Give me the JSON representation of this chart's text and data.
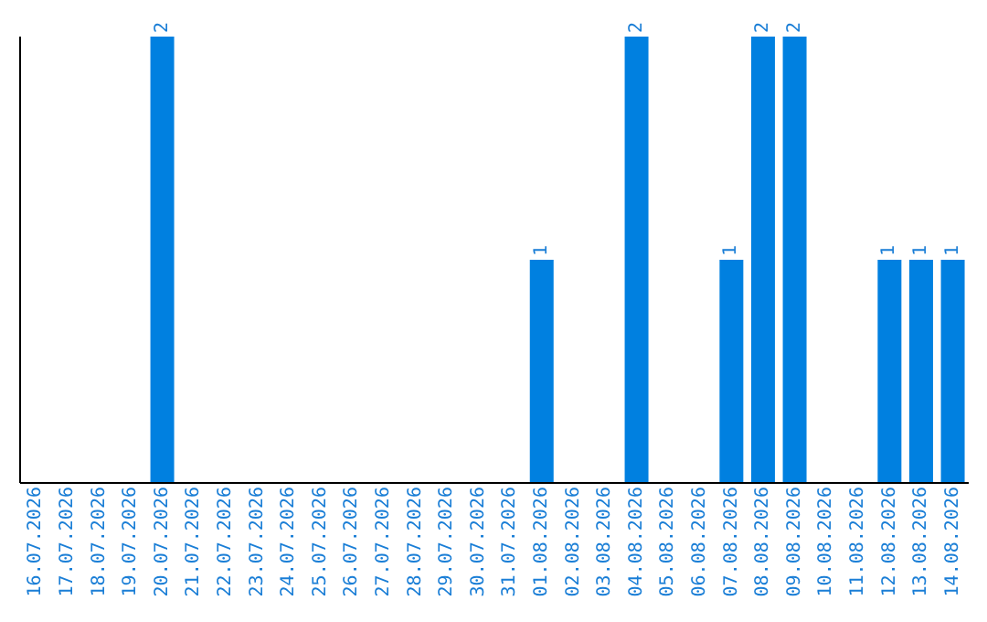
{
  "chart_data": {
    "type": "bar",
    "categories": [
      "16.07.2026",
      "17.07.2026",
      "18.07.2026",
      "19.07.2026",
      "20.07.2026",
      "21.07.2026",
      "22.07.2026",
      "23.07.2026",
      "24.07.2026",
      "25.07.2026",
      "26.07.2026",
      "27.07.2026",
      "28.07.2026",
      "29.07.2026",
      "30.07.2026",
      "31.07.2026",
      "01.08.2026",
      "02.08.2026",
      "03.08.2026",
      "04.08.2026",
      "05.08.2026",
      "06.08.2026",
      "07.08.2026",
      "08.08.2026",
      "09.08.2026",
      "10.08.2026",
      "11.08.2026",
      "12.08.2026",
      "13.08.2026",
      "14.08.2026"
    ],
    "values": [
      0,
      0,
      0,
      0,
      2,
      0,
      0,
      0,
      0,
      0,
      0,
      0,
      0,
      0,
      0,
      0,
      1,
      0,
      0,
      2,
      0,
      0,
      1,
      2,
      2,
      0,
      0,
      1,
      1,
      1
    ],
    "value_labels": [
      null,
      null,
      null,
      null,
      "2",
      null,
      null,
      null,
      null,
      null,
      null,
      null,
      null,
      null,
      null,
      null,
      "1",
      null,
      null,
      "2",
      null,
      null,
      "1",
      "2",
      "2",
      null,
      null,
      "1",
      "1",
      "1"
    ],
    "color": "#0080e0",
    "grid": false,
    "legend": false
  }
}
